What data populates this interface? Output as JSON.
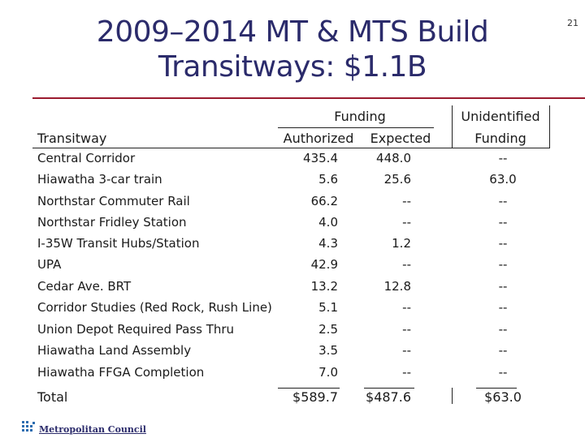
{
  "slide": {
    "title_line1": "2009–2014 MT & MTS Build",
    "title_line2": "Transitways: $1.1B",
    "page_number": "21"
  },
  "table": {
    "headers": {
      "transitway": "Transitway",
      "funding_group": "Funding",
      "authorized": "Authorized",
      "expected": "Expected",
      "unidentified_line1": "Unidentified",
      "unidentified_line2": "Funding"
    },
    "rows": [
      {
        "name": "Central Corridor",
        "authorized": "435.4",
        "expected": "448.0",
        "unidentified": "--"
      },
      {
        "name": "Hiawatha 3-car train",
        "authorized": "5.6",
        "expected": "25.6",
        "unidentified": "63.0"
      },
      {
        "name": "Northstar Commuter Rail",
        "authorized": "66.2",
        "expected": "--",
        "unidentified": "--"
      },
      {
        "name": "Northstar Fridley Station",
        "authorized": "4.0",
        "expected": "--",
        "unidentified": "--"
      },
      {
        "name": "I-35W Transit Hubs/Station",
        "authorized": "4.3",
        "expected": "1.2",
        "unidentified": "--"
      },
      {
        "name": "UPA",
        "authorized": "42.9",
        "expected": "--",
        "unidentified": "--"
      },
      {
        "name": "Cedar Ave. BRT",
        "authorized": "13.2",
        "expected": "12.8",
        "unidentified": "--"
      },
      {
        "name": "Corridor Studies (Red Rock, Rush Line)",
        "authorized": "5.1",
        "expected": "--",
        "unidentified": "--"
      },
      {
        "name": "Union Depot Required Pass Thru",
        "authorized": "2.5",
        "expected": "--",
        "unidentified": "--"
      },
      {
        "name": "Hiawatha Land Assembly",
        "authorized": "3.5",
        "expected": "--",
        "unidentified": "--"
      },
      {
        "name": "Hiawatha FFGA Completion",
        "authorized": "7.0",
        "expected": "--",
        "unidentified": "--"
      }
    ],
    "total": {
      "name": "Total",
      "authorized": "$589.7",
      "expected": "$487.6",
      "unidentified": "$63.0"
    }
  },
  "footer": {
    "logo_text": "Metropolitan Council",
    "logo_icon": "metropolitan-council-logo-icon"
  },
  "colors": {
    "title": "#2b2b6b",
    "rule": "#9b1b2e"
  }
}
